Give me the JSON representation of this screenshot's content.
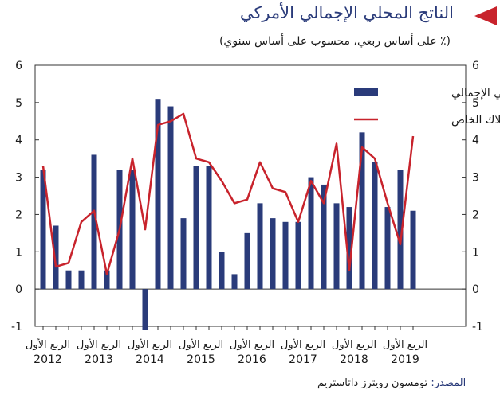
{
  "header": {
    "title": "الناتج المحلي الإجمالي الأمركي",
    "subtitle": "(٪ على أساس ربعي، محسوب على أساس سنوي)"
  },
  "footer": {
    "source_label": "المصدر:",
    "source_text": "تومسون رويترز داتاستريم"
  },
  "chart_data": {
    "type": "bar",
    "ylim": [
      -1,
      6
    ],
    "yticks": [
      -1,
      0,
      1,
      2,
      3,
      4,
      5,
      6
    ],
    "quarter_label": "الربع الأول",
    "years": [
      "2012",
      "2013",
      "2014",
      "2015",
      "2016",
      "2017",
      "2018",
      "2019"
    ],
    "categories": [
      "2012 Q1",
      "2012 Q2",
      "2012 Q3",
      "2012 Q4",
      "2013 Q1",
      "2013 Q2",
      "2013 Q3",
      "2013 Q4",
      "2014 Q1",
      "2014 Q2",
      "2014 Q3",
      "2014 Q4",
      "2015 Q1",
      "2015 Q2",
      "2015 Q3",
      "2015 Q4",
      "2016 Q1",
      "2016 Q2",
      "2016 Q3",
      "2016 Q4",
      "2017 Q1",
      "2017 Q2",
      "2017 Q3",
      "2017 Q4",
      "2018 Q1",
      "2018 Q2",
      "2018 Q3",
      "2018 Q4",
      "2019 Q1",
      "2019 Q2"
    ],
    "series": [
      {
        "name": "الناتج المحلي الإجمالي",
        "kind": "bar",
        "color": "#2a3b7a",
        "values": [
          3.2,
          1.7,
          0.5,
          0.5,
          3.6,
          0.5,
          3.2,
          3.2,
          -1.1,
          5.1,
          4.9,
          1.9,
          3.3,
          3.3,
          1.0,
          0.4,
          1.5,
          2.3,
          1.9,
          1.8,
          1.8,
          3.0,
          2.8,
          2.3,
          2.2,
          4.2,
          3.4,
          2.2,
          3.2,
          2.1
        ]
      },
      {
        "name": "الإستهلاك الخاص",
        "kind": "line",
        "color": "#c8232c",
        "values": [
          3.3,
          0.6,
          0.7,
          1.8,
          2.1,
          0.4,
          1.6,
          3.5,
          1.6,
          4.4,
          4.5,
          4.7,
          3.5,
          3.4,
          2.9,
          2.3,
          2.4,
          3.4,
          2.7,
          2.6,
          1.8,
          2.9,
          2.3,
          3.9,
          0.5,
          3.8,
          3.5,
          2.3,
          1.2,
          4.1
        ]
      }
    ]
  }
}
